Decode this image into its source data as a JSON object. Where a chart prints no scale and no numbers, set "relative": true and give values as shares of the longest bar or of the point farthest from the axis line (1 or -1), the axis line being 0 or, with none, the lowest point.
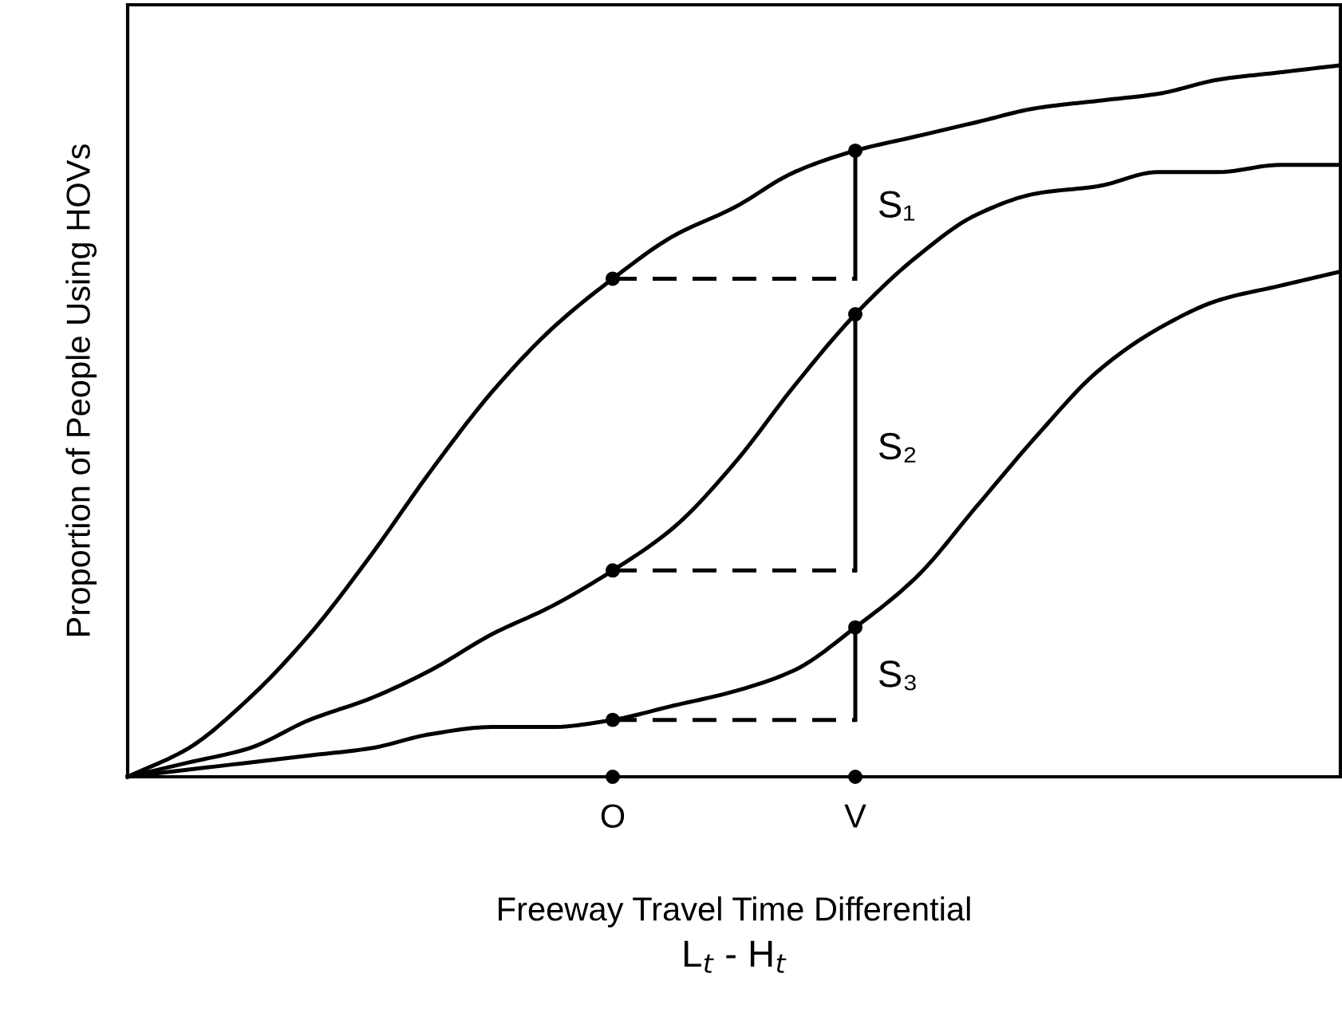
{
  "chart_data": {
    "type": "line",
    "relative": true,
    "xlabel": "Freeway Travel Time Differential",
    "ylabel": "Proportion of People Using HOVs",
    "categories": [
      null,
      null,
      null,
      null,
      null,
      null,
      null,
      null,
      "O",
      null,
      null,
      null,
      "V",
      null,
      null,
      null,
      null,
      null,
      null,
      null,
      null
    ],
    "grid": false,
    "legend": false,
    "marker": "none",
    "series": [
      {
        "color": "#000000",
        "values": [
          0,
          0.04,
          0.11,
          0.2,
          0.31,
          0.43,
          0.54,
          0.63,
          0.7,
          0.76,
          0.8,
          0.85,
          0.88,
          0.9,
          0.92,
          0.94,
          0.95,
          0.96,
          0.98,
          0.99,
          1
        ]
      },
      {
        "color": "#000000",
        "values": [
          0,
          0.02,
          0.04,
          0.08,
          0.11,
          0.15,
          0.2,
          0.24,
          0.29,
          0.35,
          0.44,
          0.55,
          0.65,
          0.73,
          0.79,
          0.82,
          0.83,
          0.85,
          0.85,
          0.86,
          0.86
        ]
      },
      {
        "color": "#000000",
        "values": [
          0,
          0.01,
          0.02,
          0.03,
          0.04,
          0.06,
          0.07,
          0.07,
          0.08,
          0.1,
          0.12,
          0.15,
          0.21,
          0.28,
          0.38,
          0.48,
          0.57,
          0.63,
          0.67,
          0.69,
          0.71
        ]
      },
      {
        "type": "line",
        "color": "#000000",
        "line_style": "dashed",
        "x": [
          "O",
          "V"
        ],
        "values": [
          0.7,
          0.7
        ]
      },
      {
        "type": "line",
        "color": "#000000",
        "line_style": "dashed",
        "x": [
          "O",
          "V"
        ],
        "values": [
          0.29,
          0.29
        ]
      },
      {
        "type": "line",
        "color": "#000000",
        "line_style": "dashed",
        "x": [
          "O",
          "V"
        ],
        "values": [
          0.08,
          0.08
        ]
      },
      {
        "type": "line",
        "color": "#000000",
        "x": [
          "V",
          "V"
        ],
        "values": [
          0.7,
          0.88
        ]
      },
      {
        "type": "line",
        "color": "#000000",
        "x": [
          "V",
          "V"
        ],
        "values": [
          0.29,
          0.65
        ]
      },
      {
        "type": "line",
        "color": "#000000",
        "x": [
          "V",
          "V"
        ],
        "values": [
          0.08,
          0.21
        ]
      },
      {
        "type": "scatter",
        "color": "#000000",
        "marker": "circle",
        "x": [
          "O",
          "V",
          "O",
          "V",
          "O",
          "V",
          "O",
          "V"
        ],
        "values": [
          0.7,
          0.88,
          0.29,
          0.65,
          0.08,
          0.21,
          0,
          0
        ]
      }
    ],
    "annotations": [
      {
        "text": "S₁",
        "x": "V",
        "y": 0.8
      },
      {
        "text": "S₂",
        "x": "V",
        "y": 0.46
      },
      {
        "text": "S₃",
        "x": "V",
        "y": 0.14
      },
      "L$_{t}$ - H$_{t}$"
    ]
  }
}
